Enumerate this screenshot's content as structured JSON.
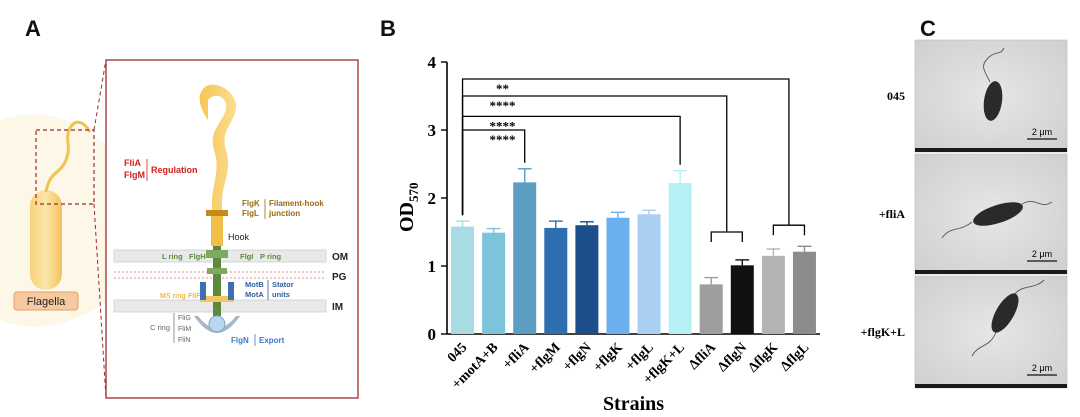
{
  "panels": {
    "a": "A",
    "b": "B",
    "c": "C"
  },
  "diagram": {
    "flagella_label": "Flagella",
    "regulation_genes": [
      "FliA",
      "FlgM"
    ],
    "regulation_label": "Regulation",
    "junction_genes": [
      "FlgK",
      "FlgL"
    ],
    "junction_label": [
      "Filament-hook",
      "junction"
    ],
    "hook_label": "Hook",
    "l_ring": "L ring",
    "flgh": "FlgH",
    "flgi": "FlgI",
    "p_ring": "P ring",
    "om": "OM",
    "pg": "PG",
    "im": "IM",
    "ms_ring": "MS ring",
    "flif": "FliF",
    "motb": "MotB",
    "mota": "MotA",
    "stator": [
      "Stator",
      "units"
    ],
    "c_ring": "C ring",
    "c_ring_genes": [
      "FliG",
      "FliM",
      "FliN"
    ],
    "flgn": "FlgN",
    "export_label": "Export"
  },
  "chart_data": {
    "type": "bar",
    "ylabel": "OD",
    "ylabel_sub": "570",
    "xlabel": "Strains",
    "ylim": [
      0,
      4
    ],
    "yticks": [
      "0",
      "1",
      "2",
      "3",
      "4"
    ],
    "categories": [
      "045",
      "+motA+B",
      "+fliA",
      "+flgM",
      "+flgN",
      "+flgK",
      "+flgL",
      "+flgK+L",
      "ΔfliA",
      "ΔflgN",
      "ΔflgK",
      "ΔflgL"
    ],
    "values": [
      1.58,
      1.49,
      2.23,
      1.56,
      1.6,
      1.71,
      1.76,
      2.22,
      0.73,
      1.01,
      1.15,
      1.21
    ],
    "errors": [
      0.08,
      0.06,
      0.2,
      0.1,
      0.05,
      0.08,
      0.06,
      0.18,
      0.1,
      0.08,
      0.1,
      0.08
    ],
    "colors": [
      "#a9dbe3",
      "#7cc3dc",
      "#5b9dc3",
      "#2f6fb0",
      "#1c4f8a",
      "#6ab0ee",
      "#a9cff2",
      "#b5f0f5",
      "#9e9e9e",
      "#111111",
      "#b4b4b4",
      "#8c8c8c"
    ],
    "significance": [
      {
        "from": 0,
        "to": 2,
        "label": "****",
        "level": 3.0
      },
      {
        "from": 0,
        "to": 7,
        "label": "****",
        "level": 3.2
      },
      {
        "from": 0,
        "to": 8.5,
        "label": "****",
        "level": 3.5
      },
      {
        "from": 0,
        "to": 10.5,
        "label": "**",
        "level": 3.75
      }
    ]
  },
  "micrographs": [
    {
      "label": "045",
      "scale": "2 μm"
    },
    {
      "label": "+fliA",
      "scale": "2 μm"
    },
    {
      "label": "+flgK+L",
      "scale": "2 μm"
    }
  ]
}
